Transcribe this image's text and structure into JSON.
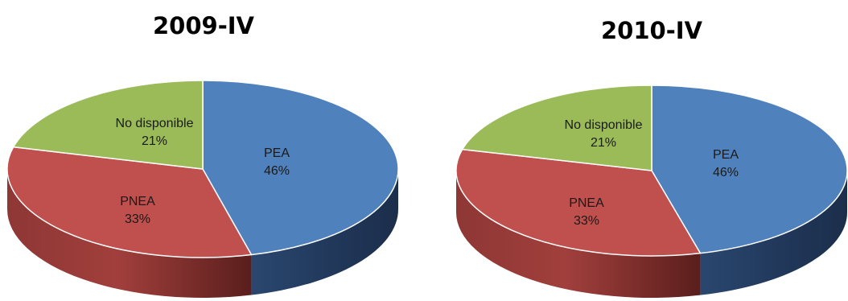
{
  "chart_data": [
    {
      "type": "pie",
      "title": "2009-IV",
      "slices": [
        {
          "label": "PEA",
          "value": 46,
          "display": "46%",
          "color": "#4f81bd"
        },
        {
          "label": "PNEA",
          "value": 33,
          "display": "33%",
          "color": "#c0504d"
        },
        {
          "label": "No disponible",
          "value": 21,
          "display": "21%",
          "color": "#9bbb59"
        }
      ]
    },
    {
      "type": "pie",
      "title": "2010-IV",
      "slices": [
        {
          "label": "PEA",
          "value": 46,
          "display": "46%",
          "color": "#4f81bd"
        },
        {
          "label": "PNEA",
          "value": 33,
          "display": "33%",
          "color": "#c0504d"
        },
        {
          "label": "No disponible",
          "value": 21,
          "display": "21%",
          "color": "#9bbb59"
        }
      ]
    }
  ]
}
